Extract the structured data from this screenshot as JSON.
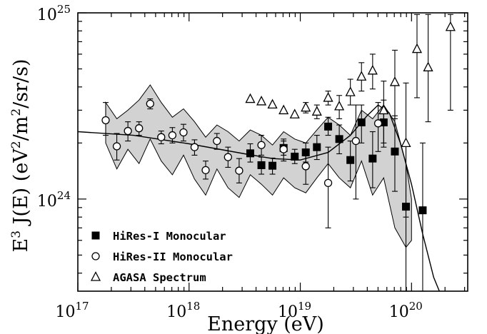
{
  "chart_data": {
    "type": "scatter",
    "title": "",
    "xlabel": "Energy (eV)",
    "ylabel": "E^3 J(E) (eV^2/m^2/sr/s)",
    "x_scale": "log",
    "y_scale": "log",
    "xlim": [
      1e+17,
      3.2e+20
    ],
    "ylim": [
      3.2e+23,
      1e+25
    ],
    "x_tick_labels": [
      {
        "base": "10",
        "exp": "17",
        "value": 1e+17
      },
      {
        "base": "10",
        "exp": "18",
        "value": 1e+18
      },
      {
        "base": "10",
        "exp": "19",
        "value": 1e+19
      },
      {
        "base": "10",
        "exp": "20",
        "value": 1e+20
      }
    ],
    "y_tick_labels": [
      {
        "base": "10",
        "exp": "24",
        "value": 1e+24
      },
      {
        "base": "10",
        "exp": "25",
        "value": 1e+25
      }
    ],
    "legend_position": "bottom-left",
    "series": [
      {
        "name": "HiRes-I Monocular",
        "marker": "filled-square",
        "points": [
          {
            "x": 3.55e+18,
            "y": 1.76e+24,
            "lo": 1.58e+24,
            "hi": 1.98e+24
          },
          {
            "x": 4.47e+18,
            "y": 1.52e+24,
            "lo": 1.36e+24,
            "hi": 1.68e+24
          },
          {
            "x": 5.62e+18,
            "y": 1.51e+24,
            "lo": 1.36e+24,
            "hi": 1.66e+24
          },
          {
            "x": 7.08e+18,
            "y": 1.88e+24,
            "lo": 1.72e+24,
            "hi": 2.05e+24
          },
          {
            "x": 8.91e+18,
            "y": 1.69e+24,
            "lo": 1.55e+24,
            "hi": 1.85e+24
          },
          {
            "x": 1.12e+19,
            "y": 1.78e+24,
            "lo": 1.58e+24,
            "hi": 2e+24
          },
          {
            "x": 1.41e+19,
            "y": 1.9e+24,
            "lo": 1.63e+24,
            "hi": 2.2e+24
          },
          {
            "x": 1.78e+19,
            "y": 2.45e+24,
            "lo": 2.2e+24,
            "hi": 2.75e+24
          },
          {
            "x": 2.24e+19,
            "y": 2.1e+24,
            "lo": 1.75e+24,
            "hi": 2.5e+24
          },
          {
            "x": 2.82e+19,
            "y": 1.62e+24,
            "lo": 1.25e+24,
            "hi": 2.05e+24
          },
          {
            "x": 3.55e+19,
            "y": 2.58e+24,
            "lo": 2e+24,
            "hi": 3.2e+24
          },
          {
            "x": 4.47e+19,
            "y": 1.65e+24,
            "lo": 1.15e+24,
            "hi": 2.3e+24
          },
          {
            "x": 5.62e+19,
            "y": 2.58e+24,
            "lo": 1.9e+24,
            "hi": 3.4e+24
          },
          {
            "x": 7.08e+19,
            "y": 1.8e+24,
            "lo": 1.1e+24,
            "hi": 2.8e+24
          },
          {
            "x": 8.91e+19,
            "y": 9.1e+23,
            "lo": 3.2e+23,
            "hi": 2e+24
          },
          {
            "x": 1.26e+20,
            "y": 8.7e+23,
            "lo": 3.2e+23,
            "hi": 2e+24
          }
        ]
      },
      {
        "name": "HiRes-II Monocular",
        "marker": "open-circle",
        "points": [
          {
            "x": 1.78e+17,
            "y": 2.65e+24,
            "lo": 2.2e+24,
            "hi": 3.3e+24
          },
          {
            "x": 2.24e+17,
            "y": 1.92e+24,
            "lo": 1.62e+24,
            "hi": 2.25e+24
          },
          {
            "x": 2.82e+17,
            "y": 2.32e+24,
            "lo": 2.05e+24,
            "hi": 2.6e+24
          },
          {
            "x": 3.55e+17,
            "y": 2.4e+24,
            "lo": 2.2e+24,
            "hi": 2.6e+24
          },
          {
            "x": 4.47e+17,
            "y": 3.25e+24,
            "lo": 3.05e+24,
            "hi": 3.45e+24
          },
          {
            "x": 5.62e+17,
            "y": 2.15e+24,
            "lo": 1.98e+24,
            "hi": 2.32e+24
          },
          {
            "x": 7.08e+17,
            "y": 2.2e+24,
            "lo": 2e+24,
            "hi": 2.42e+24
          },
          {
            "x": 8.91e+17,
            "y": 2.28e+24,
            "lo": 2.05e+24,
            "hi": 2.52e+24
          },
          {
            "x": 1.12e+18,
            "y": 1.9e+24,
            "lo": 1.72e+24,
            "hi": 2.08e+24
          },
          {
            "x": 1.41e+18,
            "y": 1.43e+24,
            "lo": 1.28e+24,
            "hi": 1.6e+24
          },
          {
            "x": 1.78e+18,
            "y": 2.05e+24,
            "lo": 1.85e+24,
            "hi": 2.25e+24
          },
          {
            "x": 2.24e+18,
            "y": 1.68e+24,
            "lo": 1.48e+24,
            "hi": 1.9e+24
          },
          {
            "x": 2.82e+18,
            "y": 1.42e+24,
            "lo": 1.22e+24,
            "hi": 1.65e+24
          },
          {
            "x": 4.47e+18,
            "y": 1.95e+24,
            "lo": 1.72e+24,
            "hi": 2.2e+24
          },
          {
            "x": 7.08e+18,
            "y": 1.85e+24,
            "lo": 1.6e+24,
            "hi": 2.1e+24
          },
          {
            "x": 1.12e+19,
            "y": 1.5e+24,
            "lo": 1.2e+24,
            "hi": 1.85e+24
          },
          {
            "x": 1.78e+19,
            "y": 1.22e+24,
            "lo": 7e+23,
            "hi": 1.9e+24
          },
          {
            "x": 3.16e+19,
            "y": 2.05e+24,
            "lo": 1e+24,
            "hi": 3.2e+24
          },
          {
            "x": 5.01e+19,
            "y": 2.55e+24,
            "lo": 1.8e+24,
            "hi": 3.3e+24
          }
        ]
      },
      {
        "name": "AGASA Spectrum",
        "marker": "open-triangle",
        "points": [
          {
            "x": 3.55e+18,
            "y": 3.45e+24
          },
          {
            "x": 4.47e+18,
            "y": 3.35e+24
          },
          {
            "x": 5.62e+18,
            "y": 3.22e+24
          },
          {
            "x": 7.08e+18,
            "y": 3e+24
          },
          {
            "x": 8.91e+18,
            "y": 2.85e+24
          },
          {
            "x": 1.12e+19,
            "y": 3.1e+24,
            "lo": 2.9e+24,
            "hi": 3.3e+24
          },
          {
            "x": 1.41e+19,
            "y": 2.95e+24,
            "lo": 2.7e+24,
            "hi": 3.2e+24
          },
          {
            "x": 1.78e+19,
            "y": 3.5e+24,
            "lo": 3.2e+24,
            "hi": 3.8e+24
          },
          {
            "x": 2.24e+19,
            "y": 3.15e+24,
            "lo": 2.7e+24,
            "hi": 3.6e+24
          },
          {
            "x": 2.82e+19,
            "y": 3.75e+24,
            "lo": 3.2e+24,
            "hi": 4.4e+24
          },
          {
            "x": 3.55e+19,
            "y": 4.55e+24,
            "lo": 3.8e+24,
            "hi": 5.4e+24
          },
          {
            "x": 4.47e+19,
            "y": 4.9e+24,
            "lo": 3.9e+24,
            "hi": 6e+24
          },
          {
            "x": 5.62e+19,
            "y": 3e+24,
            "lo": 2e+24,
            "hi": 4.3e+24
          },
          {
            "x": 7.08e+19,
            "y": 4.25e+24,
            "lo": 2.7e+24,
            "hi": 6.3e+24
          },
          {
            "x": 8.91e+19,
            "y": 2e+24,
            "lo": 8e+23,
            "hi": 4.2e+24
          },
          {
            "x": 1.12e+20,
            "y": 6.4e+24,
            "lo": 3.5e+24,
            "hi": 9.8e+24
          },
          {
            "x": 1.41e+20,
            "y": 5.1e+24,
            "lo": 2.6e+24,
            "hi": 9.8e+24
          },
          {
            "x": 2.24e+20,
            "y": 8.4e+24,
            "lo": 3e+24,
            "hi": 9.8e+24
          }
        ]
      }
    ],
    "fit_curve": [
      [
        1e+17,
        2.3e+24
      ],
      [
        3.16e+17,
        2.2e+24
      ],
      [
        1e+18,
        1.98e+24
      ],
      [
        3.16e+18,
        1.75e+24
      ],
      [
        5.62e+18,
        1.65e+24
      ],
      [
        1e+19,
        1.62e+24
      ],
      [
        1.78e+19,
        1.78e+24
      ],
      [
        2.82e+19,
        2.2e+24
      ],
      [
        3.98e+19,
        2.8e+24
      ],
      [
        5.01e+19,
        3.2e+24
      ],
      [
        6.31e+19,
        2.9e+24
      ],
      [
        7.94e+19,
        2e+24
      ],
      [
        1e+20,
        1.2e+24
      ],
      [
        1.26e+20,
        6.5e+23
      ],
      [
        1.58e+20,
        3.8e+23
      ],
      [
        1.78e+20,
        3.2e+23
      ]
    ],
    "band_upper": [
      [
        1.78e+17,
        3.3e+24
      ],
      [
        2.24e+17,
        2.7e+24
      ],
      [
        2.82e+17,
        3e+24
      ],
      [
        3.55e+17,
        3.4e+24
      ],
      [
        4.47e+17,
        4.1e+24
      ],
      [
        5.62e+17,
        3.3e+24
      ],
      [
        7.08e+17,
        2.75e+24
      ],
      [
        8.91e+17,
        3.05e+24
      ],
      [
        1.12e+18,
        2.6e+24
      ],
      [
        1.41e+18,
        2.15e+24
      ],
      [
        1.78e+18,
        2.5e+24
      ],
      [
        2.24e+18,
        2.3e+24
      ],
      [
        2.82e+18,
        2.05e+24
      ],
      [
        3.55e+18,
        2.35e+24
      ],
      [
        4.47e+18,
        2.2e+24
      ],
      [
        5.62e+18,
        1.95e+24
      ],
      [
        7.08e+18,
        2.3e+24
      ],
      [
        8.91e+18,
        2.1e+24
      ],
      [
        1.12e+19,
        2e+24
      ],
      [
        1.41e+19,
        2.35e+24
      ],
      [
        1.78e+19,
        2.75e+24
      ],
      [
        2.24e+19,
        2.5e+24
      ],
      [
        2.82e+19,
        2.2e+24
      ],
      [
        3.55e+19,
        3e+24
      ],
      [
        4.47e+19,
        2.7e+24
      ],
      [
        5.62e+19,
        3.2e+24
      ],
      [
        7.08e+19,
        2.6e+24
      ],
      [
        8.91e+19,
        1.55e+24
      ],
      [
        1e+20,
        1e+24
      ]
    ],
    "band_lower": [
      [
        1.78e+17,
        2e+24
      ],
      [
        2.24e+17,
        1.45e+24
      ],
      [
        2.82e+17,
        1.85e+24
      ],
      [
        3.55e+17,
        1.55e+24
      ],
      [
        4.47e+17,
        2.1e+24
      ],
      [
        5.62e+17,
        1.6e+24
      ],
      [
        7.08e+17,
        1.35e+24
      ],
      [
        8.91e+17,
        1.72e+24
      ],
      [
        1.12e+18,
        1.28e+24
      ],
      [
        1.41e+18,
        1.05e+24
      ],
      [
        1.78e+18,
        1.45e+24
      ],
      [
        2.24e+18,
        1.15e+24
      ],
      [
        2.82e+18,
        1.02e+24
      ],
      [
        3.55e+18,
        1.35e+24
      ],
      [
        4.47e+18,
        1.2e+24
      ],
      [
        5.62e+18,
        1.05e+24
      ],
      [
        7.08e+18,
        1.3e+24
      ],
      [
        8.91e+18,
        1.15e+24
      ],
      [
        1.12e+19,
        1.08e+24
      ],
      [
        1.41e+19,
        1.3e+24
      ],
      [
        1.78e+19,
        1.55e+24
      ],
      [
        2.24e+19,
        1.3e+24
      ],
      [
        2.82e+19,
        1.15e+24
      ],
      [
        3.55e+19,
        1.6e+24
      ],
      [
        4.47e+19,
        1.05e+24
      ],
      [
        5.62e+19,
        1.3e+24
      ],
      [
        7.08e+19,
        7e+23
      ],
      [
        8.91e+19,
        5.5e+23
      ],
      [
        1e+20,
        6e+23
      ]
    ],
    "colors": {
      "band_fill": "#d2d2d2",
      "ink": "#000000",
      "background": "#ffffff"
    }
  }
}
